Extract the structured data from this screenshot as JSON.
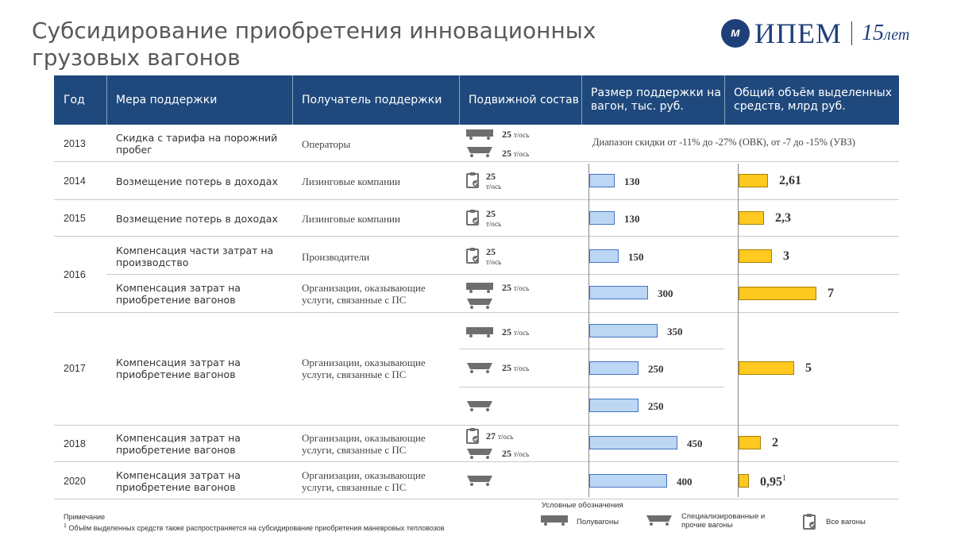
{
  "title": "Субсидирование приобретения инновационных грузовых вагонов",
  "logo": {
    "mark": "м",
    "name": "ИПЕМ",
    "years_num": "15",
    "years_word": "лет"
  },
  "header": {
    "year": "Год",
    "measure": "Мера поддержки",
    "recipient": "Получатель поддержки",
    "rolling_stock": "Подвижной состав",
    "support_size": "Размер поддержки на вагон, тыс. руб.",
    "total": "Общий объём выделенных средств, млрд руб."
  },
  "rows": {
    "r2013": {
      "year": "2013",
      "measure": "Скидка с тарифа на порожний пробег",
      "recipient": "Операторы",
      "load1": "25",
      "load2": "25",
      "range": "Диапазон скидки  от -11% до -27% (ОВК), от -7 до -15% (УВЗ)"
    },
    "r2014": {
      "year": "2014",
      "measure": "Возмещение потерь в доходах",
      "recipient": "Лизинговые компании",
      "load": "25"
    },
    "r2015": {
      "year": "2015",
      "measure": "Возмещение потерь в доходах",
      "recipient": "Лизинговые компании",
      "load": "25"
    },
    "r2016a": {
      "year": "2016",
      "measure": "Компенсация части затрат на производство",
      "recipient": "Производители",
      "load": "25"
    },
    "r2016b": {
      "measure": "Компенсация затрат на приобретение вагонов",
      "recipient": "Организации, оказывающие услуги, связанные с ПС",
      "load": "25"
    },
    "r2017": {
      "year": "2017",
      "measure": "Компенсация затрат на приобретение вагонов",
      "recipient": "Организации, оказывающие услуги, связанные с ПС",
      "load1": "25",
      "load2": "25"
    },
    "r2018": {
      "year": "2018",
      "measure": "Компенсация затрат на приобретение вагонов",
      "recipient": "Организации, оказывающие услуги, связанные с ПС",
      "load1": "27",
      "load2": "25"
    },
    "r2020": {
      "year": "2020",
      "measure": "Компенсация затрат на приобретение вагонов",
      "recipient": "Организации, оказывающие услуги, связанные с ПС"
    }
  },
  "unit": "т/ось",
  "chart_data": [
    {
      "type": "bar",
      "orientation": "horizontal",
      "title": "Размер поддержки на вагон, тыс. руб.",
      "categories": [
        "2014",
        "2015",
        "2016",
        "2016",
        "2017",
        "2017",
        "2017",
        "2018",
        "2020"
      ],
      "values": [
        130,
        130,
        150,
        300,
        350,
        250,
        250,
        450,
        400
      ],
      "value_labels": [
        "130",
        "130",
        "150",
        "300",
        "350",
        "250",
        "250",
        "450",
        "400"
      ],
      "color": "#bcd7f3"
    },
    {
      "type": "bar",
      "orientation": "horizontal",
      "title": "Общий объём выделенных средств, млрд руб.",
      "categories": [
        "2014",
        "2015",
        "2016",
        "2016",
        "2017",
        "2018",
        "2020"
      ],
      "values": [
        2.61,
        2.3,
        3,
        7,
        5,
        2,
        0.95
      ],
      "value_labels": [
        "2,61",
        "2,3",
        "3",
        "7",
        "5",
        "2",
        "0,95"
      ],
      "color": "#ffc91f"
    }
  ],
  "footnote_mark": "1",
  "note": {
    "title": "Примечание",
    "text": "Объём выделенных средств также распространяется на субсидирование приобретения маневровых тепловозов"
  },
  "legend": {
    "title": "Условные обозначения",
    "gondola": "Полувагоны",
    "special": "Специализированные и прочие вагоны",
    "all": "Все вагоны"
  }
}
